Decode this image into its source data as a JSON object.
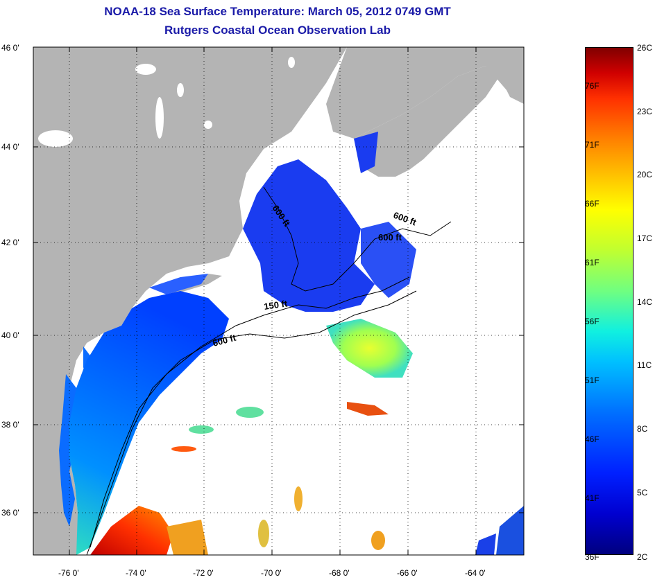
{
  "header": {
    "title_line1": "NOAA-18 Sea Surface Temperature:  March 05, 2012 0749 GMT",
    "title_line2": "Rutgers Coastal Ocean Observation Lab"
  },
  "axes": {
    "latitude_labels": [
      "46 0'",
      "44 0'",
      "42 0'",
      "40 0'",
      "38 0'",
      "36 0'"
    ],
    "longitude_labels": [
      "-76 0'",
      "-74 0'",
      "-72 0'",
      "-70 0'",
      "-68 0'",
      "-66 0'",
      "-64 0'"
    ]
  },
  "contours": {
    "labels": [
      "600 ft",
      "600 ft",
      "600 ft",
      "150 ft",
      "600 ft"
    ]
  },
  "colorbar": {
    "fahrenheit_labels": [
      "76F",
      "71F",
      "66F",
      "61F",
      "56F",
      "51F",
      "46F",
      "41F",
      "36F"
    ],
    "celsius_labels": [
      "26C",
      "23C",
      "20C",
      "17C",
      "14C",
      "11C",
      "8C",
      "5C",
      "2C"
    ]
  },
  "colors": {
    "land": "#b4b4b4",
    "ocean_no_data": "#ffffff",
    "title": "#1a1aa8",
    "cold": "#0020ff",
    "warm": "#d00000"
  }
}
